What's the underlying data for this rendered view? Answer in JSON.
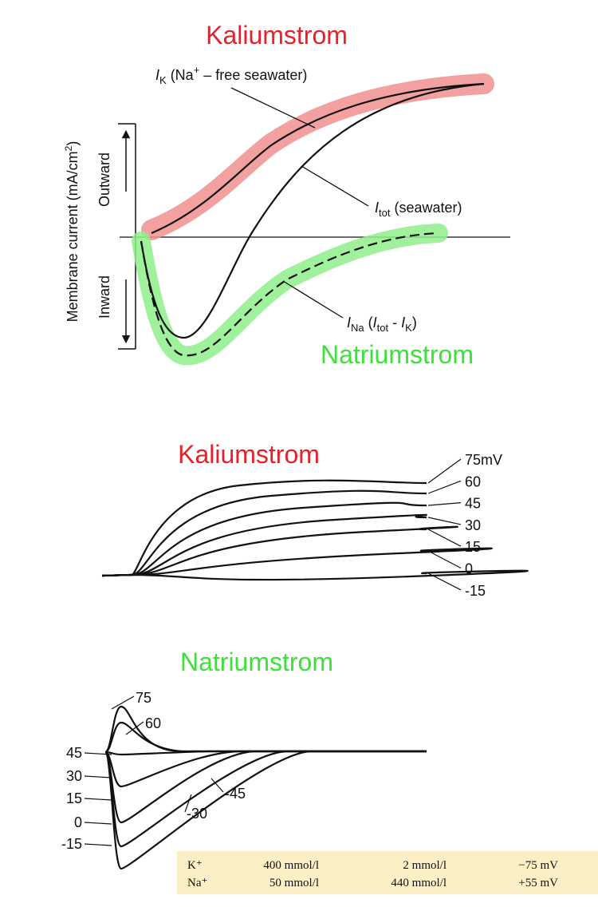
{
  "panel1": {
    "title": "Kaliumstrom",
    "y_axis_label": {
      "text": "Membrane current (mA/cm",
      "superscript": "2",
      "close": ")"
    },
    "outward": "Outward",
    "inward": "Inward",
    "ik_label": {
      "symbol": "I",
      "subscript": "K",
      "text1": " (Na",
      "superscript": "+",
      "text2": " – free seawater)"
    },
    "itot_label": {
      "symbol": "I",
      "subscript": "tot",
      "text": " (seawater)"
    },
    "ina_label": {
      "symbol": "I",
      "subscript": "Na",
      "open": " (",
      "symbol2": "I",
      "subscript2": "tot",
      "minus": " - ",
      "symbol3": "I",
      "subscript3": "K",
      "close": ")"
    },
    "subtitle": "Natriumstrom"
  },
  "panel2": {
    "title": "Kaliumstrom",
    "voltage_labels": [
      "75mV",
      "60",
      "45",
      "30",
      "15",
      "0",
      "-15"
    ]
  },
  "panel3": {
    "title": "Natriumstrom",
    "left_labels": [
      "45",
      "30",
      "15",
      "0",
      "-15"
    ],
    "curve_labels": [
      "75",
      "60",
      "-45",
      "-30"
    ]
  },
  "table": {
    "rows": [
      [
        "K⁺",
        "400 mmol/l",
        "2 mmol/l",
        "−75 mV"
      ],
      [
        "Na⁺",
        "50 mmol/l",
        "440 mmol/l",
        "+55 mV"
      ]
    ]
  }
}
